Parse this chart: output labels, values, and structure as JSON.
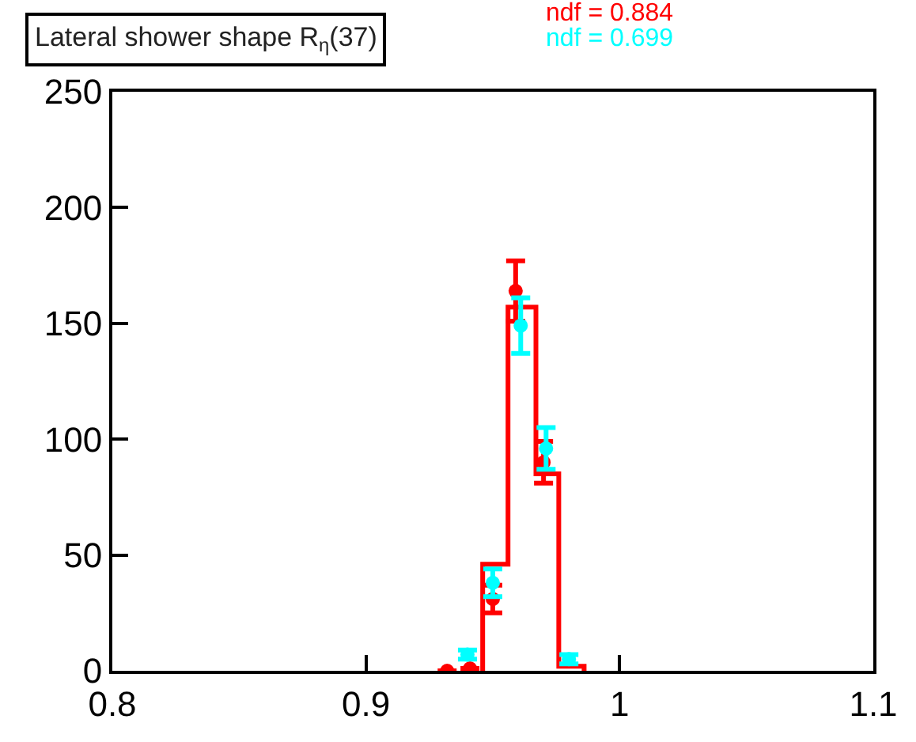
{
  "chart_data": {
    "type": "histogram",
    "title": "Lateral shower shape R$_{η}$(37)",
    "annotations": [
      "ndf = 0.884",
      "ndf = 0.699"
    ],
    "xlim": [
      0.8,
      1.1
    ],
    "xticks": [
      0.8,
      0.9,
      1,
      1.1
    ],
    "ylim": [
      0,
      250
    ],
    "yticks": [
      0,
      50,
      100,
      150,
      200,
      250
    ],
    "marker": "circle",
    "series": [
      {
        "color": "#ff0000",
        "bins": [
          0.946,
          0.956,
          0.967,
          0.976,
          0.986
        ],
        "values": [
          46,
          157,
          85,
          2
        ]
      },
      {
        "type": "scatter",
        "color": "#ff0000",
        "x": [
          0.932,
          0.941,
          0.95,
          0.959,
          0.97
        ],
        "values": [
          0,
          1,
          31,
          164,
          90
        ],
        "errors": [
          null,
          null,
          6,
          13,
          9
        ]
      },
      {
        "type": "scatter",
        "color": "#00ffff",
        "x": [
          0.94,
          0.95,
          0.961,
          0.971,
          0.98
        ],
        "values": [
          7,
          38,
          149,
          96,
          5
        ],
        "errors": [
          2,
          6,
          12,
          9,
          2
        ]
      }
    ]
  }
}
